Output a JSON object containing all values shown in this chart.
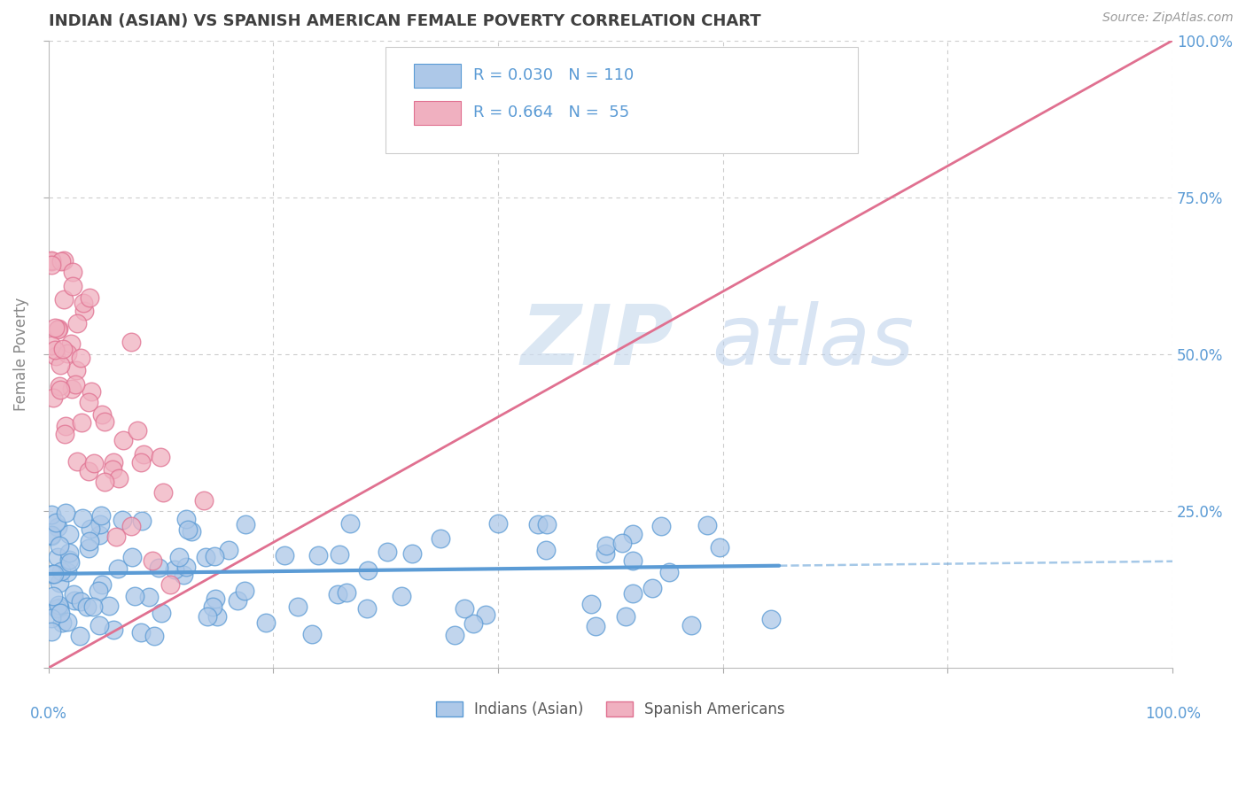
{
  "title": "INDIAN (ASIAN) VS SPANISH AMERICAN FEMALE POVERTY CORRELATION CHART",
  "source": "Source: ZipAtlas.com",
  "ylabel": "Female Poverty",
  "blue_color": "#5b9bd5",
  "pink_color": "#e07090",
  "blue_fill": "#adc8e8",
  "pink_fill": "#f0b0c0",
  "background_color": "#ffffff",
  "grid_color": "#cccccc",
  "title_color": "#404040",
  "axis_label_color": "#5b9bd5",
  "legend_text_color": "#333333",
  "source_color": "#999999",
  "watermark_color": "#d8e8f5",
  "seed": 42
}
